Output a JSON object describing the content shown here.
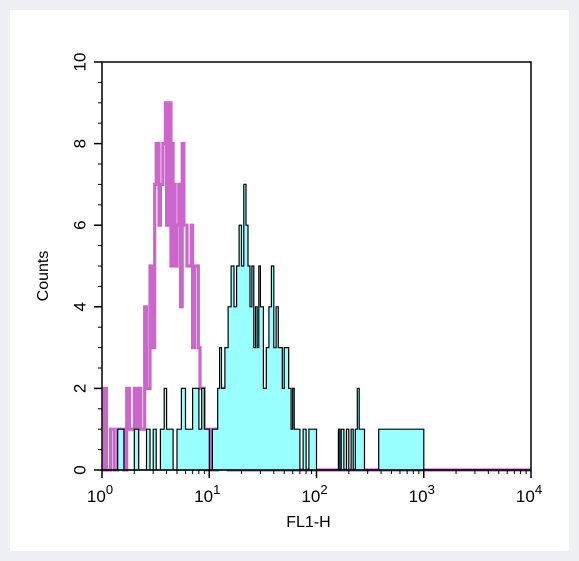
{
  "chart_data": {
    "type": "histogram",
    "xlabel": "FL1-H",
    "ylabel": "Counts",
    "x_scale": "log",
    "xlim": [
      1,
      10000
    ],
    "ylim": [
      0,
      10
    ],
    "x_ticks": [
      {
        "value": 1,
        "base": "10",
        "exp": "0"
      },
      {
        "value": 10,
        "base": "10",
        "exp": "1"
      },
      {
        "value": 100,
        "base": "10",
        "exp": "2"
      },
      {
        "value": 1000,
        "base": "10",
        "exp": "3"
      },
      {
        "value": 10000,
        "base": "10",
        "exp": "4"
      }
    ],
    "y_ticks": [
      "0",
      "2",
      "4",
      "6",
      "8",
      "10"
    ],
    "colors": {
      "control": "#cc66cc",
      "sample_fill": "#99ffff",
      "sample_line": "#000000",
      "background": "#eef0f3"
    },
    "series": [
      {
        "style": "outline",
        "x": [
          1.0,
          1.05,
          1.1,
          1.2,
          1.3,
          1.4,
          1.5,
          1.6,
          1.7,
          1.8,
          1.9,
          2.0,
          2.1,
          2.2,
          2.3,
          2.5,
          2.6,
          2.8,
          3.0,
          3.1,
          3.2,
          3.4,
          3.5,
          3.7,
          3.9,
          4.0,
          4.2,
          4.4,
          4.5,
          4.6,
          4.8,
          5.0,
          5.2,
          5.4,
          5.6,
          5.8,
          6.0,
          6.2,
          6.5,
          6.8,
          7.0,
          7.3,
          7.6,
          7.9,
          8.2,
          8.5,
          9.0,
          9.5,
          10.0,
          10.5,
          11.0,
          11.5,
          12.0,
          12.5,
          13.0,
          13.5,
          14.0,
          15.0,
          20.0,
          100.0,
          1000.0,
          10000.0
        ],
        "values": [
          0,
          2,
          0,
          1,
          0,
          1,
          1,
          0,
          2,
          1,
          1,
          2,
          1,
          2,
          1,
          4,
          2,
          5,
          3,
          7,
          8,
          6,
          7,
          8,
          9,
          6,
          9,
          5,
          8,
          7,
          5,
          6,
          7,
          4,
          8,
          6,
          6,
          5,
          5,
          6,
          3,
          5,
          5,
          3,
          2,
          2,
          1,
          0,
          1,
          0,
          1,
          0,
          1,
          1,
          2,
          1,
          1,
          0,
          0,
          0,
          0,
          0
        ]
      },
      {
        "style": "filled",
        "x": [
          1.0,
          1.2,
          1.4,
          1.6,
          1.8,
          2.0,
          2.2,
          2.4,
          2.6,
          2.8,
          3.0,
          3.2,
          3.5,
          3.8,
          4.0,
          4.3,
          4.6,
          5.0,
          5.5,
          6.0,
          6.5,
          7.0,
          7.5,
          8.0,
          8.5,
          9.0,
          9.5,
          10.0,
          10.7,
          11.5,
          12.0,
          12.5,
          13.0,
          14.0,
          15.0,
          16.0,
          17.0,
          18.0,
          19.0,
          20.0,
          21.0,
          22.0,
          23.0,
          24.0,
          25.0,
          26.0,
          27.0,
          28.0,
          29.0,
          30.0,
          31.0,
          32.0,
          34.0,
          36.0,
          38.0,
          40.0,
          42.0,
          44.0,
          46.0,
          48.0,
          50.0,
          52.0,
          55.0,
          58.0,
          60.0,
          62.0,
          65.0,
          68.0,
          70.0,
          75.0,
          80.0,
          85.0,
          90.0,
          95.0,
          100.0,
          105.0,
          110.0,
          150.0,
          160.0,
          165.0,
          170.0,
          180.0,
          190.0,
          200.0,
          210.0,
          220.0,
          230.0,
          240.0,
          250.0,
          280.0,
          300.0,
          330.0,
          350.0,
          380.0,
          1000.0,
          10000.0
        ],
        "values": [
          0,
          0,
          1,
          0,
          0,
          1,
          0,
          0,
          1,
          0,
          1,
          0,
          1,
          2,
          1,
          1,
          0,
          1,
          2,
          1,
          1,
          2,
          2,
          1,
          2,
          1,
          1,
          0,
          1,
          1,
          2,
          3,
          2,
          3,
          4,
          5,
          4,
          5,
          6,
          5,
          7,
          6,
          5,
          4,
          5,
          3,
          4,
          3,
          5,
          4,
          4,
          2,
          3,
          4,
          5,
          3,
          4,
          3,
          3,
          2,
          3,
          3,
          2,
          1,
          2,
          1,
          1,
          1,
          0,
          1,
          0,
          1,
          1,
          1,
          0,
          0,
          0,
          0,
          1,
          0,
          1,
          0,
          1,
          0,
          1,
          0,
          1,
          2,
          1,
          0,
          0,
          0,
          0,
          1,
          0,
          0
        ]
      }
    ]
  }
}
